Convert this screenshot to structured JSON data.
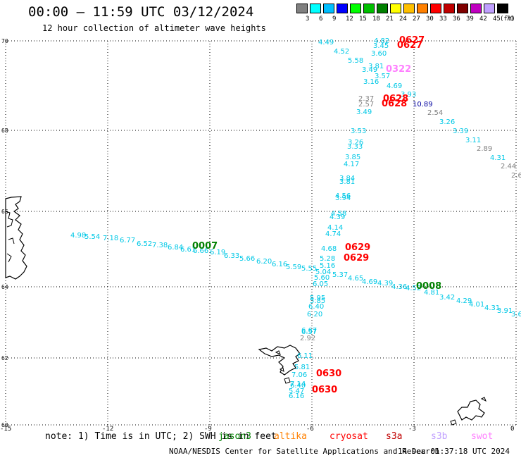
{
  "header": {
    "title": "00:00 – 11:59 UTC 03/12/2024",
    "subtitle": "12 hour collection of altimeter wave heights"
  },
  "legend": {
    "unit": "(ft)",
    "bins": [
      {
        "label": "3",
        "color": "#808080"
      },
      {
        "label": "6",
        "color": "#00ffff"
      },
      {
        "label": "9",
        "color": "#00bfff"
      },
      {
        "label": "12",
        "color": "#0000ff"
      },
      {
        "label": "15",
        "color": "#00ff00"
      },
      {
        "label": "18",
        "color": "#00c000"
      },
      {
        "label": "21",
        "color": "#008000"
      },
      {
        "label": "24",
        "color": "#ffff00"
      },
      {
        "label": "27",
        "color": "#ffc000"
      },
      {
        "label": "30",
        "color": "#ff8000"
      },
      {
        "label": "33",
        "color": "#ff0000"
      },
      {
        "label": "36",
        "color": "#c00000"
      },
      {
        "label": "39",
        "color": "#800000"
      },
      {
        "label": "42",
        "color": "#c000c0"
      },
      {
        "label": "45",
        "color": "#c0a0ff"
      },
      {
        "label": "70",
        "color": "#000000"
      }
    ]
  },
  "map": {
    "lat_labels": [
      "70",
      "68",
      "66",
      "64",
      "62",
      "60"
    ],
    "lon_labels": [
      "-15",
      "-12",
      "-9",
      "-6",
      "-3",
      "0"
    ],
    "tracks": [
      {
        "color": "#00c8e6",
        "labels": [
          "4.98",
          "5.54",
          "7.18",
          "6.77",
          "6.52",
          "7.38",
          "6.84",
          "6.61",
          "6.66",
          "6.19",
          "6.33",
          "5.66",
          "6.20",
          "6.16",
          "5.59",
          "5.55",
          "5.37",
          "4.65",
          "4.69",
          "4.39",
          "4.36",
          "4.52",
          "4.81",
          "3.42",
          "4.29",
          "4.01",
          "4.31",
          "3.91",
          "3.6"
        ]
      },
      {
        "color": "#00c8e6",
        "labels": [
          "4.49",
          "4.52",
          "5.58",
          "3.49",
          "3.81",
          "3.16",
          "3.60",
          "3.45",
          "4.82",
          "4.69",
          "3.93"
        ]
      },
      {
        "color": "#00c8e6",
        "labels": [
          "3.49",
          "3.53",
          "3.26",
          "3.33",
          "3.85",
          "4.17",
          "3.84",
          "3.81",
          "4.56",
          "3.94",
          "4.58",
          "4.39",
          "4.14",
          "4.74",
          "4.68",
          "5.28",
          "5.16",
          "5.04",
          "5.60",
          "6.05",
          "5.95",
          "5.85",
          "6.40",
          "6.20",
          "6.67",
          "6.57",
          "6.11",
          "5.81",
          "7.06",
          "7.14",
          "6.40",
          "5.47",
          "6.16"
        ]
      },
      {
        "color": "#808080",
        "labels": [
          "2.37",
          "2.57",
          "2.54",
          "2.89",
          "2.44",
          "2.6",
          "2.92"
        ]
      },
      {
        "color": "#00c8e6",
        "labels": [
          "3.26",
          "3.39",
          "3.11",
          "4.31"
        ]
      }
    ],
    "pass_labels": [
      {
        "text": "0627",
        "color": "#ff0000"
      },
      {
        "text": "0627",
        "color": "#ff0000"
      },
      {
        "text": "0322",
        "color": "#ff80ff"
      },
      {
        "text": "0628",
        "color": "#ff0000"
      },
      {
        "text": "0628",
        "color": "#ff0000"
      },
      {
        "text": "0007",
        "color": "#008000"
      },
      {
        "text": "0629",
        "color": "#ff0000"
      },
      {
        "text": "0629",
        "color": "#ff0000"
      },
      {
        "text": "0008",
        "color": "#008000"
      },
      {
        "text": "0630",
        "color": "#ff0000"
      },
      {
        "text": "0630",
        "color": "#ff0000"
      }
    ],
    "single_labels": [
      {
        "text": "10.89",
        "color": "#0000a0"
      },
      {
        "text": "3.57",
        "color": "#00c8e6"
      }
    ]
  },
  "footer": {
    "note": "note: 1) Time is in UTC; 2) SWH is in feet",
    "satellites": [
      {
        "name": "jason3",
        "color": "#008000"
      },
      {
        "name": "altika",
        "color": "#ff8000"
      },
      {
        "name": "cryosat",
        "color": "#ff0000"
      },
      {
        "name": "s3a",
        "color": "#c00000"
      },
      {
        "name": "s3b",
        "color": "#c0a0ff"
      },
      {
        "name": "swot",
        "color": "#ff80ff"
      }
    ],
    "credit": "NOAA/NESDIS Center for Satellite Applications and Research",
    "generated": "14 Dec 01:37:18 UTC 2024"
  }
}
